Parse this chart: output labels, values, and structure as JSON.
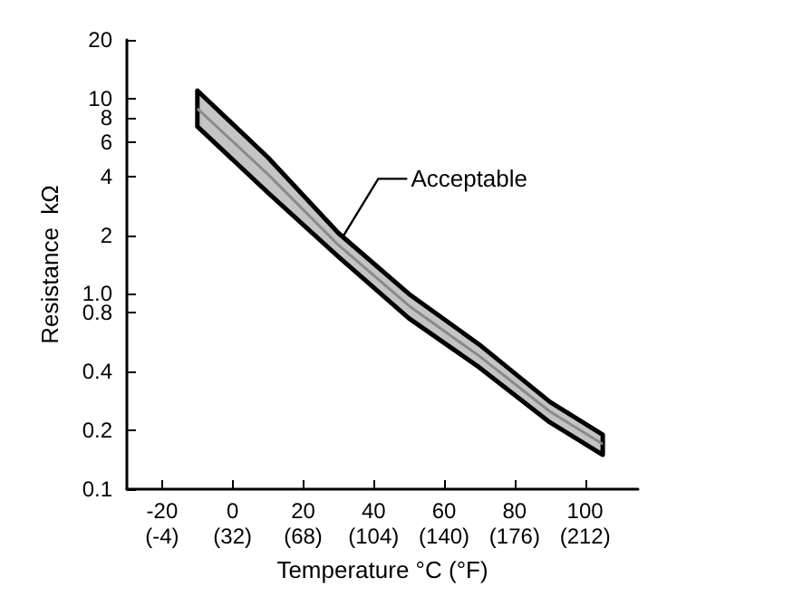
{
  "chart_data": {
    "type": "line",
    "xlabel": "Temperature °C (°F)",
    "ylabel": "Resistance  kΩ",
    "log": "y",
    "grid": false,
    "marker": "none",
    "line_style": "solid",
    "xlim": [
      -30,
      115
    ],
    "xticks": [
      -20,
      0,
      20,
      40,
      60,
      80,
      100
    ],
    "x2lim": [
      -22,
      239
    ],
    "x2ticks": [
      {
        "value": -4,
        "label": "(-4)"
      },
      {
        "value": 32,
        "label": "(32)"
      },
      {
        "value": 68,
        "label": "(68)"
      },
      {
        "value": 104,
        "label": "(104)"
      },
      {
        "value": 140,
        "label": "(140)"
      },
      {
        "value": 176,
        "label": "(176)"
      },
      {
        "value": 212,
        "label": "(212)"
      }
    ],
    "ylim": [
      0.1,
      20
    ],
    "yticks": [
      {
        "value": 0.1,
        "label": "0.1"
      },
      {
        "value": 0.2,
        "label": "0.2"
      },
      {
        "value": 0.4,
        "label": "0.4"
      },
      {
        "value": 0.8,
        "label": "0.8"
      },
      {
        "value": 1,
        "label": "1.0"
      },
      2,
      4,
      6,
      8,
      10,
      20
    ],
    "x": [
      -10,
      10,
      30,
      50,
      70,
      90,
      105
    ],
    "series": [
      {
        "color": "#8a8a8a",
        "values": [
          8.9,
          4.1,
          1.78,
          0.87,
          0.48,
          0.25,
          0.17
        ],
        "lower": [
          7.2,
          3.3,
          1.55,
          0.75,
          0.42,
          0.22,
          0.15
        ],
        "upper": [
          11,
          5,
          2.05,
          1,
          0.55,
          0.28,
          0.19
        ]
      }
    ],
    "annotations": [
      {
        "text": "Acceptable",
        "x": 30,
        "y": 1.8
      }
    ]
  }
}
